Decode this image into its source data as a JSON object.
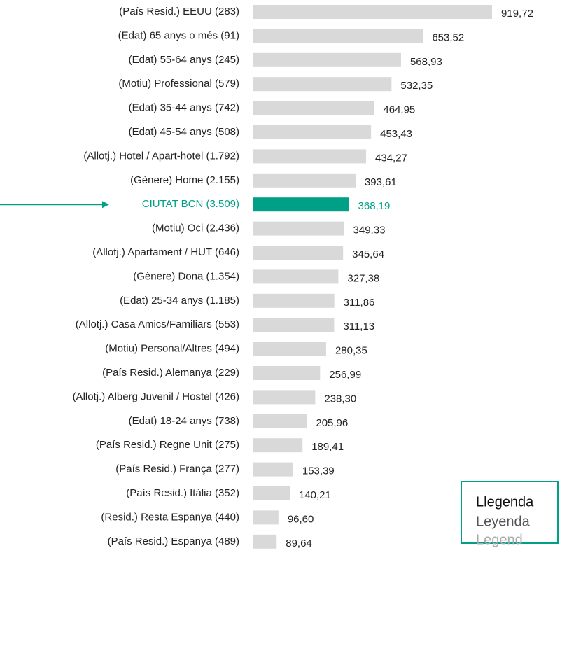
{
  "chart_data": {
    "type": "bar",
    "orientation": "horizontal",
    "categories": [
      "(País Resid.) EEUU (283)",
      "(Edat) 65 anys o més (91)",
      "(Edat) 55-64 anys (245)",
      "(Motiu) Professional (579)",
      "(Edat) 35-44 anys (742)",
      "(Edat) 45-54 anys (508)",
      "(Allotj.) Hotel / Apart-hotel (1.792)",
      "(Gènere) Home (2.155)",
      "CIUTAT BCN (3.509)",
      "(Motiu) Oci (2.436)",
      "(Allotj.) Apartament / HUT (646)",
      "(Gènere) Dona (1.354)",
      "(Edat) 25-34 anys  (1.185)",
      "(Allotj.) Casa Amics/Familiars (553)",
      "(Motiu) Personal/Altres (494)",
      "(País Resid.) Alemanya (229)",
      "(Allotj.) Alberg Juvenil / Hostel  (426)",
      "(Edat) 18-24 anys (738)",
      "(País Resid.) Regne Unit (275)",
      "(País Resid.) França (277)",
      "(País Resid.) Itàlia (352)",
      "(Resid.) Resta Espanya (440)",
      "(País Resid.) Espanya (489)"
    ],
    "values": [
      919.72,
      653.52,
      568.93,
      532.35,
      464.95,
      453.43,
      434.27,
      393.61,
      368.19,
      349.33,
      345.64,
      327.38,
      311.86,
      311.13,
      280.35,
      256.99,
      238.3,
      205.96,
      189.41,
      153.39,
      140.21,
      96.6,
      89.64
    ],
    "value_labels": [
      "919,72",
      "653,52",
      "568,93",
      "532,35",
      "464,95",
      "453,43",
      "434,27",
      "393,61",
      "368,19",
      "349,33",
      "345,64",
      "327,38",
      "311,86",
      "311,13",
      "280,35",
      "256,99",
      "238,30",
      "205,96",
      "189,41",
      "153,39",
      "140,21",
      "96,60",
      "89,64"
    ],
    "colors": [
      "#d9d9d9",
      "#d9d9d9",
      "#d9d9d9",
      "#d9d9d9",
      "#d9d9d9",
      "#d9d9d9",
      "#d9d9d9",
      "#d9d9d9",
      "#00a087",
      "#d9d9d9",
      "#d9d9d9",
      "#d9d9d9",
      "#d9d9d9",
      "#d9d9d9",
      "#d9d9d9",
      "#d9d9d9",
      "#d9d9d9",
      "#d9d9d9",
      "#d9d9d9",
      "#d9d9d9",
      "#d9d9d9",
      "#d9d9d9",
      "#d9d9d9"
    ],
    "legend_lines": [
      "Llegenda",
      "Leyenda",
      "Legend"
    ]
  }
}
